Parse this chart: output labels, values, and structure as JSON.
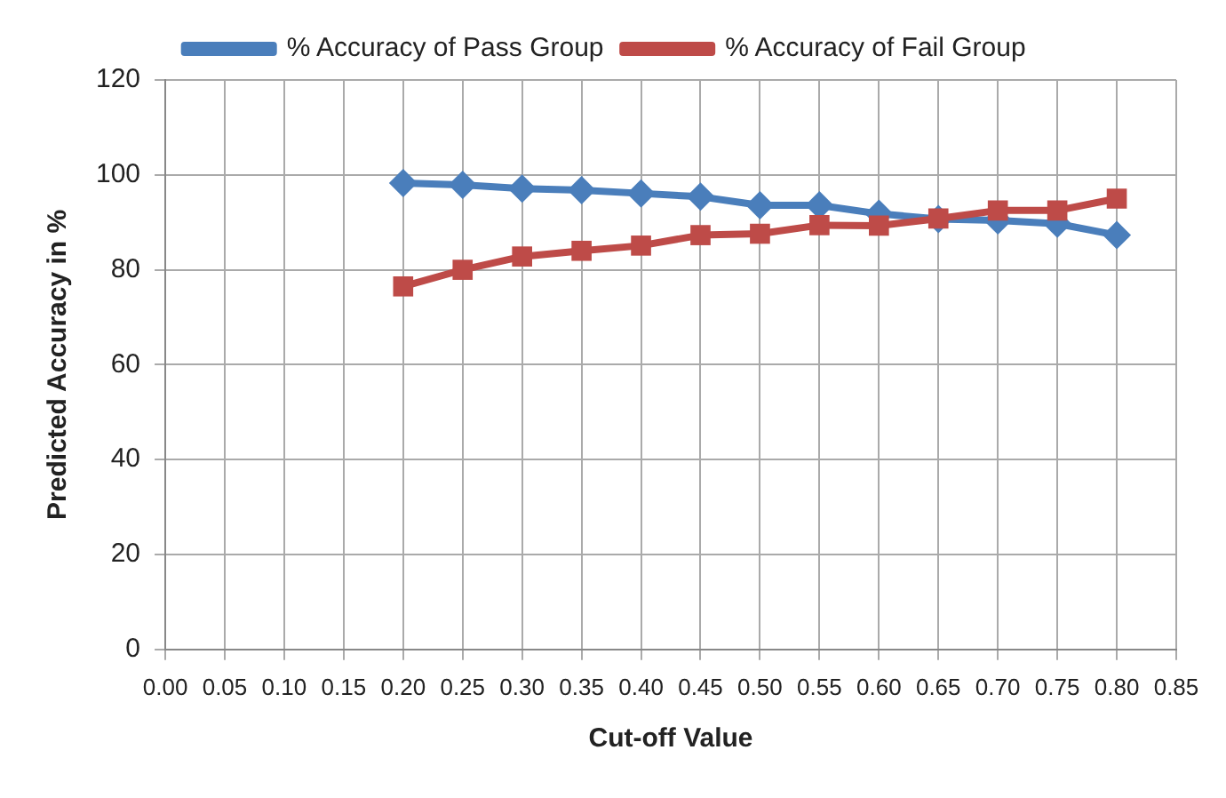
{
  "chart_data": {
    "type": "line",
    "xlabel": "Cut-off Value",
    "ylabel": "Predicted Accuracy in %",
    "x": [
      0.2,
      0.25,
      0.3,
      0.35,
      0.4,
      0.45,
      0.5,
      0.55,
      0.6,
      0.65,
      0.7,
      0.75,
      0.8
    ],
    "series": [
      {
        "name": "% Accuracy of Pass Group",
        "color": "#4a7ebb",
        "marker": "diamond",
        "values": [
          98.3,
          97.9,
          97.1,
          96.8,
          96.1,
          95.4,
          93.6,
          93.6,
          91.8,
          90.7,
          90.4,
          89.7,
          87.3
        ]
      },
      {
        "name": "% Accuracy of Fail Group",
        "color": "#be4b48",
        "marker": "square",
        "values": [
          76.5,
          80,
          82.8,
          84,
          85.1,
          87.3,
          87.6,
          89.4,
          89.3,
          90.8,
          92.5,
          92.5,
          95
        ]
      }
    ],
    "xlim": [
      0,
      0.85
    ],
    "xticks": [
      {
        "value": 0,
        "label": "0.00"
      },
      {
        "value": 0.05,
        "label": "0.05"
      },
      {
        "value": 0.1,
        "label": "0.10"
      },
      {
        "value": 0.15,
        "label": "0.15"
      },
      {
        "value": 0.2,
        "label": "0.20"
      },
      {
        "value": 0.25,
        "label": "0.25"
      },
      {
        "value": 0.3,
        "label": "0.30"
      },
      {
        "value": 0.35,
        "label": "0.35"
      },
      {
        "value": 0.4,
        "label": "0.40"
      },
      {
        "value": 0.45,
        "label": "0.45"
      },
      {
        "value": 0.5,
        "label": "0.50"
      },
      {
        "value": 0.55,
        "label": "0.55"
      },
      {
        "value": 0.6,
        "label": "0.60"
      },
      {
        "value": 0.65,
        "label": "0.65"
      },
      {
        "value": 0.7,
        "label": "0.70"
      },
      {
        "value": 0.75,
        "label": "0.75"
      },
      {
        "value": 0.8,
        "label": "0.80"
      },
      {
        "value": 0.85,
        "label": "0.85"
      }
    ],
    "ylim": [
      0,
      120
    ],
    "yticks": [
      0,
      20,
      40,
      60,
      80,
      100,
      120
    ],
    "grid": true,
    "legend": "top",
    "line_style": "solid"
  }
}
